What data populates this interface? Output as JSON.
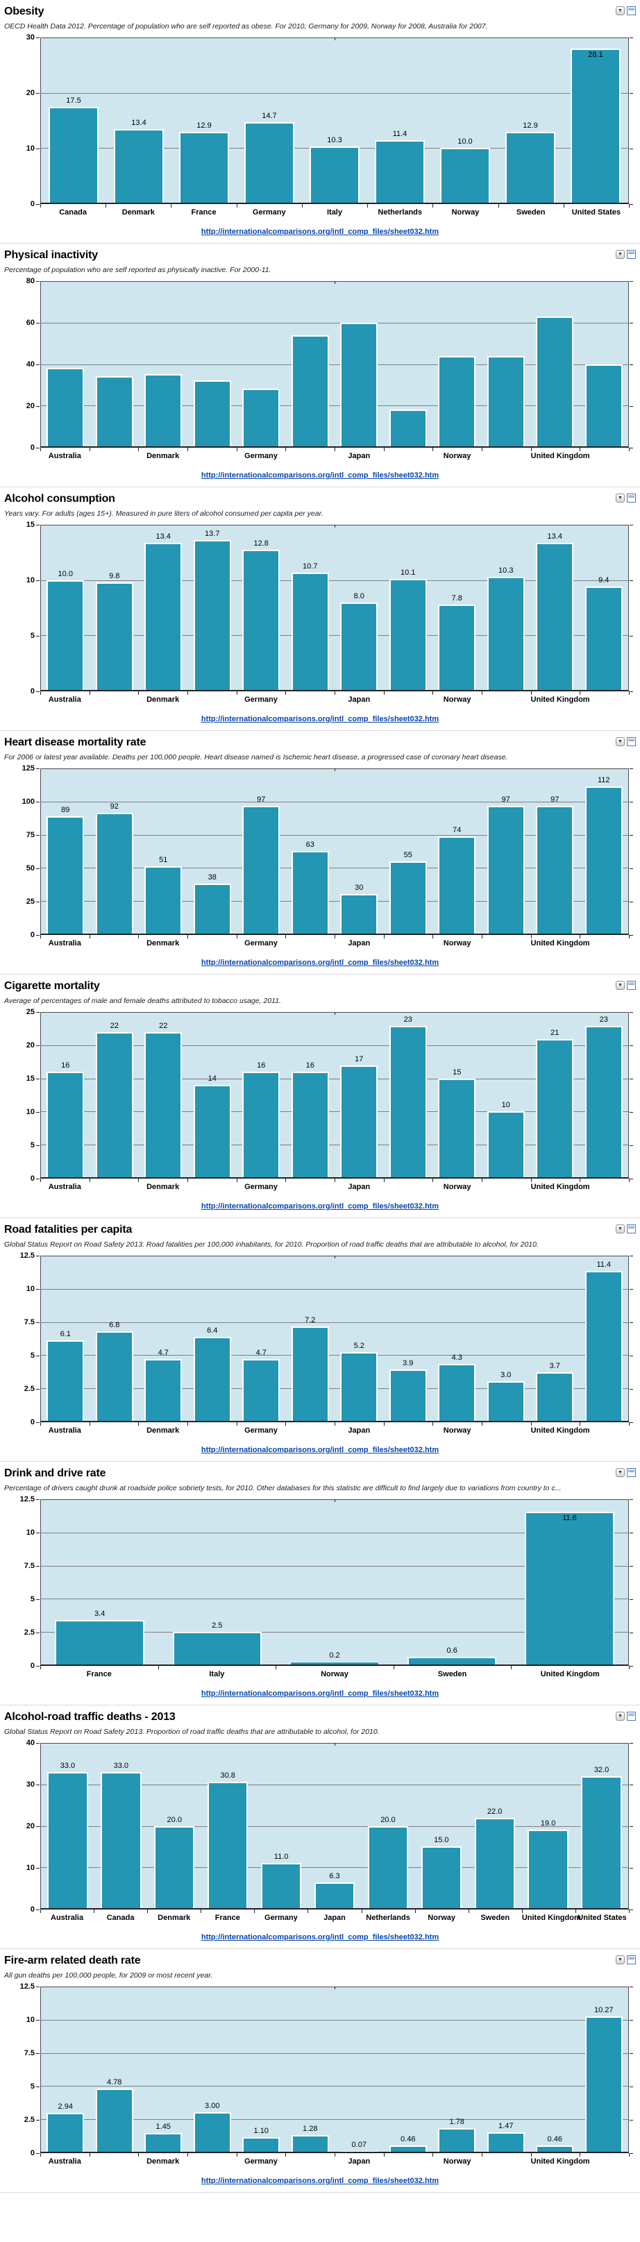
{
  "page": {
    "source_link": "http://internationalcomparisons.org/intl_comp_files/sheet032.htm",
    "colors": {
      "bar": "#2296b2",
      "plot_bg": "#cfe6ef",
      "grid": "#7f7f7f",
      "plot_border": "#4d4d4d",
      "link": "#0645ad"
    }
  },
  "icons": {
    "collapse_glyph": "▼",
    "collapse_name": "triangle-down-icon",
    "window_name": "window-icon"
  },
  "chart_data": [
    {
      "type": "bar",
      "title": "Obesity",
      "subtitle": "OECD Health Data 2012. Percentage of population who are self reported as obese. For 2010, Germany for 2009, Norway for 2008, Australia for 2007.",
      "ymax": 30,
      "yticks": [
        "30",
        "20",
        "10",
        "0"
      ],
      "grid": true,
      "legend": "none",
      "tick_labels": [
        "Canada",
        "Denmark",
        "France",
        "Germany",
        "Italy",
        "Netherlands",
        "Norway",
        "Sweden",
        "United States"
      ],
      "values": [
        17.5,
        13.4,
        12.9,
        14.7,
        10.3,
        11.4,
        10.0,
        12.9,
        28.1
      ],
      "labels": [
        "17.5",
        "13.4",
        "12.9",
        "14.7",
        "10.3",
        "11.4",
        "10.0",
        "12.9",
        "28.1"
      ],
      "link": "http://internationalcomparisons.org/intl_comp_files/sheet032.htm"
    },
    {
      "type": "bar",
      "title": "Physical inactivity",
      "subtitle": "Percentage of population who are self reported as physically inactive. For 2000-11.",
      "ymax": 80,
      "yticks": [
        "80",
        "60",
        "40",
        "20",
        "0"
      ],
      "grid": true,
      "legend": "none",
      "tick_labels": [
        "Australia",
        "",
        "Denmark",
        "",
        "Germany",
        "",
        "Japan",
        "",
        "Norway",
        "",
        "United Kingdom",
        ""
      ],
      "values": [
        38,
        34,
        35,
        32,
        28,
        54,
        60,
        18,
        44,
        44,
        63,
        40
      ],
      "labels": null,
      "link": "http://internationalcomparisons.org/intl_comp_files/sheet032.htm"
    },
    {
      "type": "bar",
      "title": "Alcohol consumption",
      "subtitle": "Years vary. For adults (ages 15+). Measured in pure liters of alcohol consumed per capita per year.",
      "ymax": 15,
      "yticks": [
        "15",
        "10",
        "5",
        "0"
      ],
      "grid": true,
      "legend": "none",
      "tick_labels": [
        "Australia",
        "",
        "Denmark",
        "",
        "Germany",
        "",
        "Japan",
        "",
        "Norway",
        "",
        "United Kingdom",
        ""
      ],
      "values": [
        10.0,
        9.8,
        13.4,
        13.7,
        12.8,
        10.7,
        8.0,
        10.1,
        7.8,
        10.3,
        13.4,
        9.4
      ],
      "labels": [
        "10.0",
        "9.8",
        "13.4",
        "13.7",
        "12.8",
        "10.7",
        "8.0",
        "10.1",
        "7.8",
        "10.3",
        "13.4",
        "9.4"
      ],
      "link": "http://internationalcomparisons.org/intl_comp_files/sheet032.htm"
    },
    {
      "type": "bar",
      "title": "Heart disease mortality rate",
      "subtitle": "For 2006 or latest year available. Deaths per 100,000 people. Heart disease named is Ischemic heart disease, a progressed case of coronary heart disease.",
      "ymax": 125,
      "yticks": [
        "125",
        "100",
        "75",
        "50",
        "25",
        "0"
      ],
      "grid": true,
      "legend": "none",
      "tick_labels": [
        "Australia",
        "",
        "Denmark",
        "",
        "Germany",
        "",
        "Japan",
        "",
        "Norway",
        "",
        "United Kingdom",
        ""
      ],
      "values": [
        89,
        92,
        51,
        38,
        97,
        63,
        30,
        55,
        74,
        97,
        97,
        112
      ],
      "labels": [
        "89",
        "92",
        "51",
        "38",
        "97",
        "63",
        "30",
        "55",
        "74",
        "97",
        "97",
        "112"
      ],
      "link": "http://internationalcomparisons.org/intl_comp_files/sheet032.htm"
    },
    {
      "type": "bar",
      "title": "Cigarette mortality",
      "subtitle": "Average of percentages of male and female deaths attributed to tobacco usage, 2011.",
      "ymax": 25,
      "yticks": [
        "25",
        "20",
        "15",
        "10",
        "5",
        "0"
      ],
      "grid": true,
      "legend": "none",
      "tick_labels": [
        "Australia",
        "",
        "Denmark",
        "",
        "Germany",
        "",
        "Japan",
        "",
        "Norway",
        "",
        "United Kingdom",
        ""
      ],
      "values": [
        16,
        22,
        22,
        14,
        16,
        16,
        17,
        23,
        15,
        10,
        21,
        23
      ],
      "labels": [
        "16",
        "22",
        "22",
        "14",
        "16",
        "16",
        "17",
        "23",
        "15",
        "10",
        "21",
        "23"
      ],
      "link": "http://internationalcomparisons.org/intl_comp_files/sheet032.htm"
    },
    {
      "type": "bar",
      "title": "Road fatalities per capita",
      "subtitle": "Global Status Report on Road Safety 2013. Road fatalities per 100,000 inhabitants, for 2010. Proportion of road traffic deaths that are attributable to alcohol, for 2010.",
      "ymax": 12.5,
      "yticks": [
        "12.5",
        "10",
        "7.5",
        "5",
        "2.5",
        "0"
      ],
      "grid": true,
      "legend": "none",
      "tick_labels": [
        "Australia",
        "",
        "Denmark",
        "",
        "Germany",
        "",
        "Japan",
        "",
        "Norway",
        "",
        "United Kingdom",
        ""
      ],
      "values": [
        6.1,
        6.8,
        4.7,
        6.4,
        4.7,
        7.2,
        5.2,
        3.9,
        4.3,
        3.0,
        3.7,
        11.4
      ],
      "labels": [
        "6.1",
        "6.8",
        "4.7",
        "6.4",
        "4.7",
        "7.2",
        "5.2",
        "3.9",
        "4.3",
        "3.0",
        "3.7",
        "11.4"
      ],
      "link": "http://internationalcomparisons.org/intl_comp_files/sheet032.htm"
    },
    {
      "type": "bar",
      "title": "Drink and drive rate",
      "subtitle": "Percentage of drivers caught drunk at roadside police sobriety tests, for 2010. Other databases for this statistic are difficult to find largely due to variations from country to c...",
      "ymax": 12.5,
      "yticks": [
        "12.5",
        "10",
        "7.5",
        "5",
        "2.5",
        "0"
      ],
      "grid": true,
      "legend": "none",
      "tick_labels": [
        "France",
        "Italy",
        "Norway",
        "Sweden",
        "United Kingdom"
      ],
      "values": [
        3.4,
        2.5,
        0.2,
        0.6,
        11.6
      ],
      "labels": [
        "3.4",
        "2.5",
        "0.2",
        "0.6",
        "11.6"
      ],
      "link": "http://internationalcomparisons.org/intl_comp_files/sheet032.htm"
    },
    {
      "type": "bar",
      "title": "Alcohol-road traffic deaths - 2013",
      "subtitle": "Global Status Report on Road Safety 2013. Proportion of road traffic deaths that are attributable to alcohol, for 2010.",
      "ymax": 40,
      "yticks": [
        "40",
        "30",
        "20",
        "10",
        "0"
      ],
      "grid": true,
      "legend": "none",
      "tick_labels": [
        "Australia",
        "Canada",
        "Denmark",
        "France",
        "Germany",
        "Japan",
        "Netherlands",
        "Norway",
        "Sweden",
        "United Kingdom",
        "United States"
      ],
      "values": [
        33.0,
        33.0,
        20.0,
        30.8,
        11.0,
        6.3,
        20.0,
        15.0,
        22.0,
        19.0,
        32.0
      ],
      "labels": [
        "33.0",
        "33.0",
        "20.0",
        "30.8",
        "11.0",
        "6.3",
        "20.0",
        "15.0",
        "22.0",
        "19.0",
        "32.0"
      ],
      "link": "http://internationalcomparisons.org/intl_comp_files/sheet032.htm"
    },
    {
      "type": "bar",
      "title": "Fire-arm related death rate",
      "subtitle": "All gun deaths per 100,000 people, for 2009 or most recent year.",
      "ymax": 12.5,
      "yticks": [
        "12.5",
        "10",
        "7.5",
        "5",
        "2.5",
        "0"
      ],
      "grid": true,
      "legend": "none",
      "tick_labels": [
        "Australia",
        "",
        "Denmark",
        "",
        "Germany",
        "",
        "Japan",
        "",
        "Norway",
        "",
        "United Kingdom",
        ""
      ],
      "values": [
        2.94,
        4.78,
        1.45,
        3.0,
        1.1,
        1.28,
        0.07,
        0.46,
        1.78,
        1.47,
        0.46,
        10.27
      ],
      "labels": [
        "2.94",
        "4.78",
        "1.45",
        "3.00",
        "1.10",
        "1.28",
        "0.07",
        "0.46",
        "1.78",
        "1.47",
        "0.46",
        "10.27"
      ],
      "link": "http://internationalcomparisons.org/intl_comp_files/sheet032.htm"
    }
  ]
}
